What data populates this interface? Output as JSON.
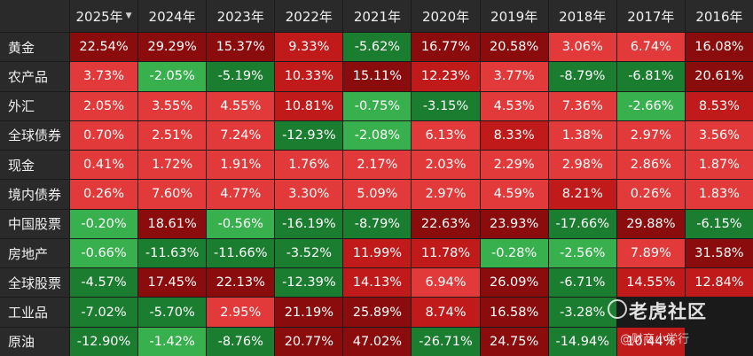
{
  "table": {
    "years": [
      "2025年",
      "2024年",
      "2023年",
      "2022年",
      "2021年",
      "2020年",
      "2019年",
      "2018年",
      "2017年",
      "2016年"
    ],
    "sort_indicator": "▼",
    "rows": [
      {
        "label": "黄金",
        "values": [
          "22.54%",
          "29.29%",
          "15.37%",
          "9.33%",
          "-5.62%",
          "16.77%",
          "20.58%",
          "3.06%",
          "6.74%",
          "16.08%"
        ]
      },
      {
        "label": "农产品",
        "values": [
          "3.73%",
          "-2.05%",
          "-5.19%",
          "10.33%",
          "15.11%",
          "12.23%",
          "3.77%",
          "-8.79%",
          "-6.81%",
          "20.61%"
        ]
      },
      {
        "label": "外汇",
        "values": [
          "2.05%",
          "3.55%",
          "4.55%",
          "10.81%",
          "-0.75%",
          "-3.15%",
          "4.53%",
          "7.36%",
          "-2.66%",
          "8.53%"
        ]
      },
      {
        "label": "全球债券",
        "values": [
          "0.70%",
          "2.51%",
          "7.24%",
          "-12.93%",
          "-2.08%",
          "6.13%",
          "8.33%",
          "1.38%",
          "2.97%",
          "3.56%"
        ]
      },
      {
        "label": "现金",
        "values": [
          "0.41%",
          "1.72%",
          "1.91%",
          "1.76%",
          "2.17%",
          "2.03%",
          "2.29%",
          "2.98%",
          "2.86%",
          "1.87%"
        ]
      },
      {
        "label": "境内债券",
        "values": [
          "0.26%",
          "7.60%",
          "4.77%",
          "3.30%",
          "5.09%",
          "2.97%",
          "4.59%",
          "8.21%",
          "0.26%",
          "1.83%"
        ]
      },
      {
        "label": "中国股票",
        "values": [
          "-0.20%",
          "18.61%",
          "-0.56%",
          "-16.19%",
          "-8.79%",
          "22.63%",
          "23.93%",
          "-17.66%",
          "29.88%",
          "-6.15%"
        ]
      },
      {
        "label": "房地产",
        "values": [
          "-0.66%",
          "-11.63%",
          "-11.66%",
          "-3.52%",
          "11.99%",
          "11.78%",
          "-0.28%",
          "-2.56%",
          "7.89%",
          "31.58%"
        ]
      },
      {
        "label": "全球股票",
        "values": [
          "-4.57%",
          "17.45%",
          "22.13%",
          "-12.39%",
          "14.13%",
          "6.94%",
          "26.09%",
          "-6.71%",
          "14.55%",
          "12.84%"
        ]
      },
      {
        "label": "工业品",
        "values": [
          "-7.02%",
          "-5.70%",
          "2.95%",
          "21.19%",
          "25.89%",
          "8.74%",
          "16.58%",
          "-3.28%",
          "",
          ""
        ]
      },
      {
        "label": "原油",
        "values": [
          "-12.90%",
          "-1.42%",
          "-8.76%",
          "20.77%",
          "47.02%",
          "-26.71%",
          "24.75%",
          "-14.94%",
          "10.44%",
          ""
        ]
      }
    ]
  },
  "colors": {
    "positive_light": "#e23a3a",
    "positive_mid": "#c01a1a",
    "positive_dark": "#8a0c0c",
    "negative_light": "#38b04e",
    "negative_dark": "#1b7d2f",
    "header_bg": "#2a2a2a"
  },
  "watermark": {
    "title": "老虎社区",
    "subtitle": "@财商小学行"
  }
}
